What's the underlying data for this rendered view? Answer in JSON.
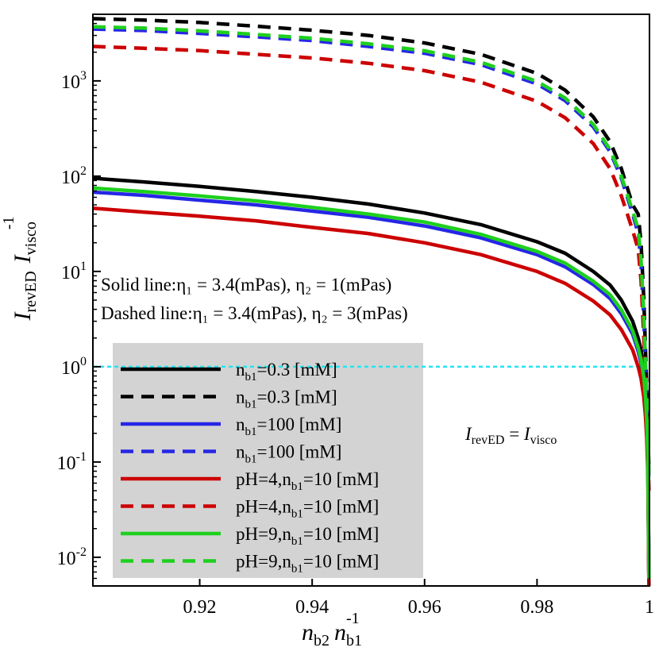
{
  "chart_data": {
    "type": "line",
    "yscale": "log",
    "xlim": [
      0.901,
      1.0
    ],
    "ylim": [
      0.005,
      5000
    ],
    "x_ticks": [
      {
        "value": 0.92,
        "label": "0.92"
      },
      {
        "value": 0.94,
        "label": "0.94"
      },
      {
        "value": 0.96,
        "label": "0.96"
      },
      {
        "value": 0.98,
        "label": "0.98"
      },
      {
        "value": 1.0,
        "label": "1"
      }
    ],
    "y_ticks": [
      {
        "value": 0.01,
        "base": "10",
        "exp": "-2"
      },
      {
        "value": 0.1,
        "base": "10",
        "exp": "-1"
      },
      {
        "value": 1,
        "base": "10",
        "exp": "0"
      },
      {
        "value": 10,
        "base": "10",
        "exp": "1"
      },
      {
        "value": 100,
        "base": "10",
        "exp": "2"
      },
      {
        "value": 1000,
        "base": "10",
        "exp": "3"
      }
    ],
    "xlabel": {
      "n1": "n",
      "s1": "b2",
      "n2": "n",
      "s2": "b1",
      "sup": "-1"
    },
    "ylabel": {
      "i1": "I",
      "s1": "revED",
      "i2": "I",
      "s2": "visco",
      "sup": "-1"
    },
    "annotations": {
      "solid_prefix": "Solid line:",
      "solid_eq": "η₁ = 3.4(mPas), η₂ = 1(mPas)",
      "dashed_prefix": "Dashed line:",
      "dashed_eq": "η₁ = 3.4(mPas), η₂ = 3(mPas)",
      "equality": {
        "i1": "I",
        "s1": "revED",
        "eq": " = ",
        "i2": "I",
        "s2": "visco"
      }
    },
    "reference_line": {
      "y": 1,
      "color": "#22e5f0"
    },
    "x_samples": [
      0.901,
      0.91,
      0.92,
      0.93,
      0.94,
      0.95,
      0.96,
      0.97,
      0.98,
      0.985,
      0.99,
      0.993,
      0.995,
      0.997,
      0.998,
      0.9985,
      0.999,
      0.9993,
      0.9995,
      0.9997,
      0.9999
    ],
    "series": [
      {
        "name": "n_b1=0.3 [mM]",
        "pre": "n",
        "sub": "b1",
        "post": "=0.3 [mM]",
        "color": "#000000",
        "dash": false,
        "values": [
          95,
          87,
          78,
          69,
          60,
          51,
          41,
          31,
          20.5,
          15.5,
          10,
          7.2,
          5,
          3,
          2,
          1.5,
          0.98,
          0.6,
          0.35,
          0.15,
          0.006
        ]
      },
      {
        "name": "n_b1=0.3 [mM]",
        "pre": "n",
        "sub": "b1",
        "post": "=0.3 [mM]",
        "color": "#000000",
        "dash": true,
        "values": [
          4500,
          4350,
          4100,
          3750,
          3400,
          3000,
          2500,
          1900,
          1200,
          800,
          420,
          230,
          120,
          50,
          40,
          20,
          5,
          1.5,
          0.6,
          0.25,
          0.08
        ]
      },
      {
        "name": "n_b1=100 [mM]",
        "pre": "n",
        "sub": "b1",
        "post": "=100 [mM]",
        "color": "#2626e6",
        "dash": false,
        "values": [
          68,
          63,
          56,
          50,
          43,
          37,
          30,
          22.5,
          15,
          11.2,
          7.3,
          5.2,
          3.6,
          2.2,
          1.45,
          1.1,
          0.71,
          0.44,
          0.26,
          0.11,
          0.006
        ]
      },
      {
        "name": "n_b1=100 [mM]",
        "pre": "n",
        "sub": "b1",
        "post": "=100 [mM]",
        "color": "#2626e6",
        "dash": true,
        "values": [
          3500,
          3380,
          3150,
          2900,
          2650,
          2300,
          1950,
          1480,
          930,
          620,
          330,
          180,
          95,
          40,
          25,
          12,
          3,
          1,
          0.45,
          0.2,
          0.06
        ]
      },
      {
        "name": "pH=4,n_b1=10 [mM]",
        "pre": "pH=4,n",
        "sub": "b1",
        "post": "=10 [mM]",
        "color": "#cc0000",
        "dash": false,
        "values": [
          46,
          42,
          38,
          34,
          29,
          25,
          20,
          15,
          10,
          7.5,
          4.9,
          3.5,
          2.45,
          1.5,
          1,
          0.75,
          0.48,
          0.3,
          0.18,
          0.08,
          0.005
        ]
      },
      {
        "name": "pH=4,n_b1=10 [mM]",
        "pre": "pH=4,n",
        "sub": "b1",
        "post": "=10 [mM]",
        "color": "#cc0000",
        "dash": true,
        "values": [
          2300,
          2200,
          2080,
          1900,
          1740,
          1530,
          1280,
          970,
          610,
          410,
          220,
          120,
          62,
          27,
          17,
          8,
          2,
          0.7,
          0.35,
          0.15,
          0.05
        ]
      },
      {
        "name": "pH=9,n_b1=10 [mM]",
        "pre": "pH=9,n",
        "sub": "b1",
        "post": "=10 [mM]",
        "color": "#1ed01e",
        "dash": false,
        "values": [
          75,
          69,
          62,
          55,
          47,
          40,
          33,
          24.5,
          16.2,
          12.2,
          7.9,
          5.7,
          3.95,
          2.4,
          1.58,
          1.2,
          0.78,
          0.48,
          0.28,
          0.12,
          0.006
        ]
      },
      {
        "name": "pH=9,n_b1=10 [mM]",
        "pre": "pH=9,n",
        "sub": "b1",
        "post": "=10 [mM]",
        "color": "#1ed01e",
        "dash": true,
        "values": [
          3700,
          3580,
          3350,
          3070,
          2800,
          2450,
          2070,
          1570,
          990,
          660,
          350,
          190,
          100,
          43,
          28,
          13,
          3.5,
          1.1,
          0.5,
          0.22,
          0.07
        ]
      }
    ],
    "legend": {
      "placement": "lower-left"
    }
  }
}
